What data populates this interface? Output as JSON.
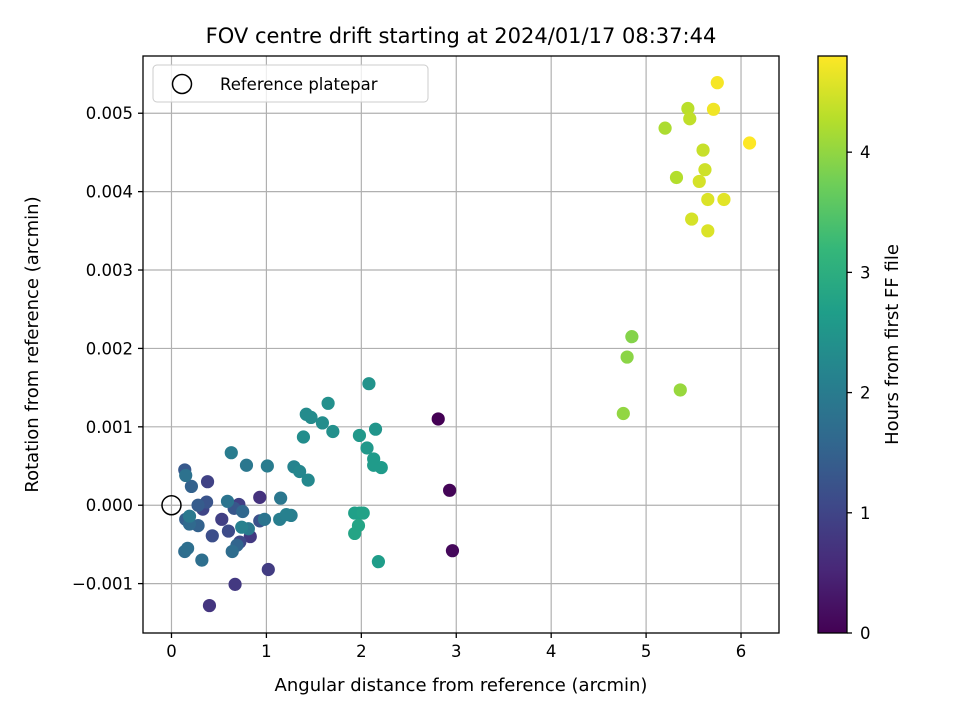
{
  "chart_data": {
    "type": "scatter",
    "title": "FOV centre drift starting at 2024/01/17 08:37:44",
    "xlabel": "Angular distance from reference (arcmin)",
    "ylabel": "Rotation from reference (arcmin)",
    "xlim": [
      -0.3,
      6.4
    ],
    "ylim": [
      -0.00163,
      0.00573
    ],
    "xticks": [
      0,
      1,
      2,
      3,
      4,
      5,
      6
    ],
    "xtick_labels": [
      "0",
      "1",
      "2",
      "3",
      "4",
      "5",
      "6"
    ],
    "yticks": [
      -0.001,
      0.0,
      0.001,
      0.002,
      0.003,
      0.004,
      0.005
    ],
    "ytick_labels": [
      "−0.001",
      "0.000",
      "0.001",
      "0.002",
      "0.003",
      "0.004",
      "0.005"
    ],
    "grid": true,
    "legend": {
      "placement": "top-left",
      "entries": [
        {
          "label": "Reference platepar",
          "marker": "hollow-circle"
        }
      ]
    },
    "reference_point": {
      "x": 0,
      "y": 0,
      "label": "Reference platepar"
    },
    "colorbar": {
      "label": "Hours from first FF file",
      "range": [
        0,
        4.8
      ],
      "ticks": [
        0,
        1,
        2,
        3,
        4
      ],
      "tick_labels": [
        "0",
        "1",
        "2",
        "3",
        "4"
      ],
      "colormap": "viridis",
      "stops": [
        "#440154",
        "#482878",
        "#3e4989",
        "#31688e",
        "#26828e",
        "#1f9e89",
        "#35b779",
        "#6ece58",
        "#b5de2b",
        "#fde725"
      ]
    },
    "points": [
      {
        "x": 2.81,
        "y": 0.0011,
        "c": 0.0
      },
      {
        "x": 2.93,
        "y": 0.00019,
        "c": 0.05
      },
      {
        "x": 2.96,
        "y": -0.00058,
        "c": 0.1
      },
      {
        "x": 0.93,
        "y": 0.0001,
        "c": 0.7
      },
      {
        "x": 0.83,
        "y": -0.0004,
        "c": 0.8
      },
      {
        "x": 0.4,
        "y": -0.00128,
        "c": 0.75
      },
      {
        "x": 0.67,
        "y": -0.00101,
        "c": 0.8
      },
      {
        "x": 1.02,
        "y": -0.00082,
        "c": 0.85
      },
      {
        "x": 0.71,
        "y": 1e-05,
        "c": 0.9
      },
      {
        "x": 0.53,
        "y": -0.00018,
        "c": 0.9
      },
      {
        "x": 0.38,
        "y": 0.0003,
        "c": 0.95
      },
      {
        "x": 0.33,
        "y": -5e-05,
        "c": 1.0
      },
      {
        "x": 0.72,
        "y": -0.00047,
        "c": 1.05
      },
      {
        "x": 0.6,
        "y": -0.00033,
        "c": 1.1
      },
      {
        "x": 0.43,
        "y": -0.00039,
        "c": 1.15
      },
      {
        "x": 0.93,
        "y": -0.0002,
        "c": 1.2
      },
      {
        "x": 0.37,
        "y": 4e-05,
        "c": 1.25
      },
      {
        "x": 0.66,
        "y": -4e-05,
        "c": 1.3
      },
      {
        "x": 0.14,
        "y": 0.00045,
        "c": 1.35
      },
      {
        "x": 0.28,
        "y": 0.0,
        "c": 1.4
      },
      {
        "x": 0.15,
        "y": -0.00018,
        "c": 1.45
      },
      {
        "x": 0.28,
        "y": -0.00026,
        "c": 1.5
      },
      {
        "x": 0.21,
        "y": 0.00024,
        "c": 1.5
      },
      {
        "x": 0.69,
        "y": -0.00051,
        "c": 1.55
      },
      {
        "x": 0.75,
        "y": -8e-05,
        "c": 1.6
      },
      {
        "x": 0.19,
        "y": -0.00024,
        "c": 1.65
      },
      {
        "x": 0.14,
        "y": -0.00059,
        "c": 1.7
      },
      {
        "x": 0.32,
        "y": -0.0007,
        "c": 1.75
      },
      {
        "x": 0.64,
        "y": -0.00059,
        "c": 1.7
      },
      {
        "x": 0.17,
        "y": -0.00055,
        "c": 1.75
      },
      {
        "x": 0.15,
        "y": 0.00038,
        "c": 1.8
      },
      {
        "x": 0.59,
        "y": 5e-05,
        "c": 1.85
      },
      {
        "x": 0.98,
        "y": -0.00018,
        "c": 1.85
      },
      {
        "x": 1.15,
        "y": 9e-05,
        "c": 1.9
      },
      {
        "x": 0.81,
        "y": -0.0003,
        "c": 1.95
      },
      {
        "x": 0.79,
        "y": 0.00051,
        "c": 1.9
      },
      {
        "x": 0.63,
        "y": 0.00067,
        "c": 2.0
      },
      {
        "x": 1.01,
        "y": 0.0005,
        "c": 2.0
      },
      {
        "x": 0.19,
        "y": -0.00014,
        "c": 1.95
      },
      {
        "x": 1.14,
        "y": -0.00018,
        "c": 2.05
      },
      {
        "x": 1.26,
        "y": -0.00013,
        "c": 2.05
      },
      {
        "x": 1.21,
        "y": -0.00012,
        "c": 2.1
      },
      {
        "x": 0.74,
        "y": -0.00028,
        "c": 2.1
      },
      {
        "x": 1.29,
        "y": 0.00049,
        "c": 2.15
      },
      {
        "x": 1.35,
        "y": 0.00043,
        "c": 2.2
      },
      {
        "x": 1.44,
        "y": 0.00032,
        "c": 2.25
      },
      {
        "x": 1.42,
        "y": 0.00116,
        "c": 2.3
      },
      {
        "x": 1.47,
        "y": 0.00112,
        "c": 2.3
      },
      {
        "x": 1.39,
        "y": 0.00087,
        "c": 2.35
      },
      {
        "x": 1.59,
        "y": 0.00105,
        "c": 2.35
      },
      {
        "x": 1.65,
        "y": 0.0013,
        "c": 2.4
      },
      {
        "x": 1.7,
        "y": 0.00094,
        "c": 2.4
      },
      {
        "x": 2.08,
        "y": 0.00155,
        "c": 2.45
      },
      {
        "x": 2.15,
        "y": 0.00097,
        "c": 2.5
      },
      {
        "x": 1.98,
        "y": 0.00089,
        "c": 2.55
      },
      {
        "x": 2.06,
        "y": 0.00073,
        "c": 2.55
      },
      {
        "x": 2.13,
        "y": 0.00059,
        "c": 2.6
      },
      {
        "x": 2.13,
        "y": 0.00051,
        "c": 2.6
      },
      {
        "x": 2.21,
        "y": 0.00048,
        "c": 2.6
      },
      {
        "x": 2.18,
        "y": -0.00072,
        "c": 2.65
      },
      {
        "x": 1.93,
        "y": -0.0001,
        "c": 2.7
      },
      {
        "x": 1.98,
        "y": -0.0001,
        "c": 2.7
      },
      {
        "x": 2.02,
        "y": -0.0001,
        "c": 2.75
      },
      {
        "x": 1.97,
        "y": -0.00026,
        "c": 2.8
      },
      {
        "x": 1.93,
        "y": -0.00036,
        "c": 2.8
      },
      {
        "x": 4.85,
        "y": 0.00215,
        "c": 3.9
      },
      {
        "x": 4.8,
        "y": 0.00189,
        "c": 3.95
      },
      {
        "x": 4.76,
        "y": 0.00117,
        "c": 4.0
      },
      {
        "x": 5.36,
        "y": 0.00147,
        "c": 4.05
      },
      {
        "x": 5.2,
        "y": 0.00481,
        "c": 4.2
      },
      {
        "x": 5.32,
        "y": 0.00418,
        "c": 4.25
      },
      {
        "x": 5.44,
        "y": 0.00506,
        "c": 4.3
      },
      {
        "x": 5.46,
        "y": 0.00493,
        "c": 4.35
      },
      {
        "x": 5.6,
        "y": 0.00453,
        "c": 4.4
      },
      {
        "x": 5.62,
        "y": 0.00428,
        "c": 4.45
      },
      {
        "x": 5.56,
        "y": 0.00413,
        "c": 4.5
      },
      {
        "x": 5.48,
        "y": 0.00365,
        "c": 4.5
      },
      {
        "x": 5.65,
        "y": 0.0039,
        "c": 4.55
      },
      {
        "x": 5.65,
        "y": 0.0035,
        "c": 4.55
      },
      {
        "x": 5.82,
        "y": 0.0039,
        "c": 4.6
      },
      {
        "x": 5.71,
        "y": 0.00505,
        "c": 4.7
      },
      {
        "x": 5.75,
        "y": 0.00539,
        "c": 4.75
      },
      {
        "x": 6.09,
        "y": 0.00462,
        "c": 4.8
      }
    ]
  }
}
